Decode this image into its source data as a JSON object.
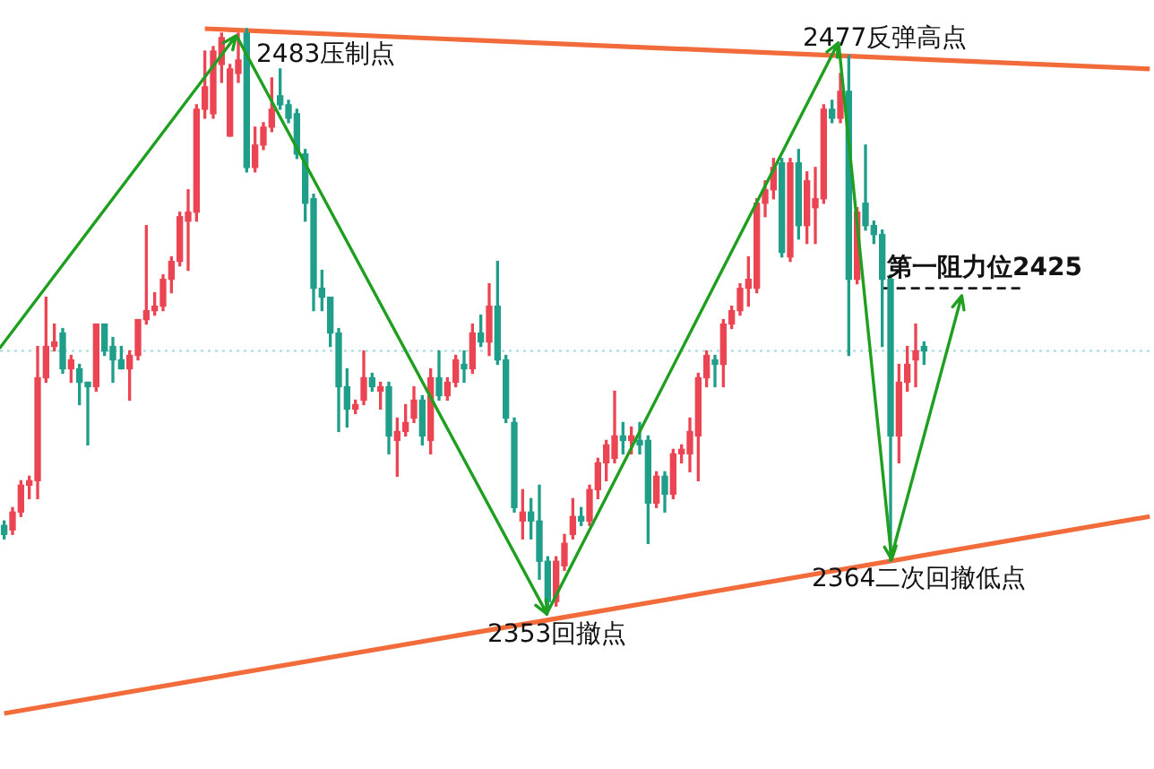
{
  "chart_data": {
    "type": "candlestick",
    "categories": [
      null,
      null,
      null,
      null,
      null,
      null,
      null,
      null,
      null,
      null,
      null,
      null,
      null,
      null,
      null,
      null,
      null,
      null,
      null,
      null,
      null,
      null,
      null,
      null,
      null,
      null,
      null,
      null,
      null,
      null,
      null,
      null,
      null,
      null,
      null,
      null,
      null,
      null,
      null,
      null,
      null,
      null,
      null,
      null,
      null,
      null,
      null,
      null,
      null,
      null,
      null,
      null,
      null,
      null,
      null,
      null,
      null,
      null,
      null,
      null,
      null,
      null,
      null,
      null,
      null,
      null,
      null,
      null,
      null,
      null,
      null,
      null,
      null,
      null,
      null,
      null,
      null,
      null,
      null,
      null,
      null,
      null,
      null,
      null,
      null,
      null,
      null,
      null,
      null,
      null,
      null,
      null,
      null,
      null,
      null,
      null,
      null,
      null,
      null,
      null,
      null,
      null,
      null,
      null,
      null,
      null,
      null,
      null,
      null,
      null,
      null,
      null,
      null,
      null,
      null,
      null,
      null,
      null,
      null,
      null,
      null,
      null,
      null,
      null,
      null,
      null,
      null,
      null,
      null,
      null,
      null,
      null,
      null,
      null,
      null,
      null,
      null,
      null
    ],
    "ohlc": [
      [
        2372,
        2373,
        2369,
        2370
      ],
      [
        2371,
        2376,
        2370,
        2375
      ],
      [
        2375,
        2382,
        2374,
        2381
      ],
      [
        2381,
        2383,
        2378,
        2382
      ],
      [
        2382,
        2412,
        2378,
        2405
      ],
      [
        2405,
        2423,
        2404,
        2412
      ],
      [
        2412,
        2417,
        2411,
        2413
      ],
      [
        2415,
        2416,
        2406,
        2407
      ],
      [
        2407,
        2410,
        2404,
        2409
      ],
      [
        2407,
        2408,
        2399,
        2404
      ],
      [
        2404,
        2404,
        2390,
        2403
      ],
      [
        2403,
        2417,
        2402,
        2417
      ],
      [
        2417,
        2417,
        2410,
        2411
      ],
      [
        2412,
        2414,
        2404,
        2409
      ],
      [
        2409,
        2412,
        2407,
        2407
      ],
      [
        2407,
        2411,
        2400,
        2410
      ],
      [
        2410,
        2418,
        2409,
        2418
      ],
      [
        2418,
        2439,
        2417,
        2420
      ],
      [
        2420,
        2424,
        2419,
        2421
      ],
      [
        2421,
        2428,
        2420,
        2427
      ],
      [
        2427,
        2432,
        2424,
        2431
      ],
      [
        2431,
        2442,
        2430,
        2441
      ],
      [
        2440,
        2447,
        2429,
        2442
      ],
      [
        2442,
        2466,
        2440,
        2465
      ],
      [
        2465,
        2478,
        2463,
        2470
      ],
      [
        2464,
        2479,
        2463,
        2478
      ],
      [
        2475,
        2482,
        2471,
        2481
      ],
      [
        2459,
        2475,
        2459,
        2474
      ],
      [
        2473,
        2482,
        2471,
        2476
      ],
      [
        2482,
        2483,
        2451,
        2452
      ],
      [
        2452,
        2461,
        2451,
        2457
      ],
      [
        2457,
        2462,
        2456,
        2461
      ],
      [
        2461,
        2472,
        2460,
        2465
      ],
      [
        2468,
        2474,
        2465,
        2466
      ],
      [
        2466,
        2467,
        2462,
        2463
      ],
      [
        2464,
        2465,
        2454,
        2455
      ],
      [
        2455,
        2456,
        2440,
        2444
      ],
      [
        2445,
        2446,
        2420,
        2425
      ],
      [
        2425,
        2429,
        2420,
        2423
      ],
      [
        2423,
        2423,
        2412,
        2415
      ],
      [
        2415,
        2416,
        2393,
        2403
      ],
      [
        2403,
        2407,
        2394,
        2398
      ],
      [
        2398,
        2400,
        2397,
        2399
      ],
      [
        2400,
        2411,
        2399,
        2405
      ],
      [
        2405,
        2406,
        2402,
        2403
      ],
      [
        2402,
        2404,
        2398,
        2403
      ],
      [
        2403,
        2404,
        2388,
        2392
      ],
      [
        2391,
        2396,
        2383,
        2393
      ],
      [
        2393,
        2399,
        2392,
        2395
      ],
      [
        2396,
        2403,
        2395,
        2400
      ],
      [
        2400,
        2401,
        2390,
        2392
      ],
      [
        2391,
        2407,
        2388,
        2405
      ],
      [
        2405,
        2411,
        2400,
        2401
      ],
      [
        2401,
        2405,
        2400,
        2404
      ],
      [
        2404,
        2410,
        2403,
        2409
      ],
      [
        2408,
        2411,
        2404,
        2407
      ],
      [
        2407,
        2417,
        2406,
        2415
      ],
      [
        2415,
        2419,
        2412,
        2413
      ],
      [
        2413,
        2426,
        2410,
        2421
      ],
      [
        2421,
        2431,
        2408,
        2409
      ],
      [
        2409,
        2410,
        2395,
        2396
      ],
      [
        2395,
        2396,
        2375,
        2376
      ],
      [
        2373,
        2380,
        2369,
        2375
      ],
      [
        2375,
        2378,
        2369,
        2373
      ],
      [
        2373,
        2381,
        2360,
        2364
      ],
      [
        2364,
        2365,
        2353,
        2355
      ],
      [
        2355,
        2365,
        2354,
        2364
      ],
      [
        2363,
        2370,
        2362,
        2368
      ],
      [
        2370,
        2378,
        2369,
        2374
      ],
      [
        2374,
        2376,
        2372,
        2373
      ],
      [
        2373,
        2381,
        2372,
        2380
      ],
      [
        2380,
        2387,
        2378,
        2386
      ],
      [
        2386,
        2391,
        2382,
        2390
      ],
      [
        2387,
        2402,
        2386,
        2392
      ],
      [
        2392,
        2395,
        2388,
        2391
      ],
      [
        2391,
        2394,
        2388,
        2392
      ],
      [
        2391,
        2395,
        2388,
        2390
      ],
      [
        2391,
        2392,
        2368,
        2377
      ],
      [
        2377,
        2384,
        2376,
        2383
      ],
      [
        2383,
        2384,
        2375,
        2379
      ],
      [
        2379,
        2389,
        2378,
        2388
      ],
      [
        2388,
        2390,
        2386,
        2389
      ],
      [
        2388,
        2396,
        2384,
        2393
      ],
      [
        2392,
        2406,
        2382,
        2405
      ],
      [
        2405,
        2411,
        2403,
        2410
      ],
      [
        2409,
        2410,
        2403,
        2408
      ],
      [
        2408,
        2418,
        2403,
        2417
      ],
      [
        2417,
        2421,
        2416,
        2420
      ],
      [
        2420,
        2426,
        2419,
        2425
      ],
      [
        2425,
        2432,
        2421,
        2427
      ],
      [
        2425,
        2445,
        2424,
        2444
      ],
      [
        2444,
        2449,
        2441,
        2447
      ],
      [
        2447,
        2454,
        2445,
        2452
      ],
      [
        2453,
        2454,
        2432,
        2433
      ],
      [
        2432,
        2454,
        2431,
        2453
      ],
      [
        2453,
        2456,
        2436,
        2439
      ],
      [
        2439,
        2451,
        2435,
        2449
      ],
      [
        2443,
        2452,
        2435,
        2445
      ],
      [
        2445,
        2466,
        2444,
        2465
      ],
      [
        2465,
        2467,
        2462,
        2463
      ],
      [
        2463,
        2473,
        2462,
        2469
      ],
      [
        2469,
        2477,
        2410,
        2427
      ],
      [
        2427,
        2443,
        2426,
        2442
      ],
      [
        2444,
        2457,
        2438,
        2439
      ],
      [
        2439,
        2440,
        2435,
        2437
      ],
      [
        2437,
        2438,
        2412,
        2427
      ],
      [
        2427,
        2428,
        2364,
        2392
      ],
      [
        2392,
        2408,
        2386,
        2404
      ],
      [
        2404,
        2412,
        2402,
        2408
      ],
      [
        2409,
        2417,
        2403,
        2411
      ],
      [
        2412,
        2413,
        2408,
        2411
      ],
      null,
      null,
      null,
      null,
      null,
      null,
      null,
      null,
      null,
      null,
      null,
      null,
      null,
      null,
      null,
      null,
      null,
      null,
      null,
      null,
      null,
      null,
      null,
      null,
      null,
      null,
      null
    ],
    "colors": [
      "#1f9e89",
      "#eb4553",
      "#eb4553",
      "#eb4553",
      "#eb4553",
      "#eb4553",
      "#eb4553",
      "#1f9e89",
      "#eb4553",
      "#1f9e89",
      "#1f9e89",
      "#eb4553",
      "#1f9e89",
      "#1f9e89",
      "#1f9e89",
      "#eb4553",
      "#eb4553",
      "#eb4553",
      "#eb4553",
      "#eb4553",
      "#eb4553",
      "#eb4553",
      "#eb4553",
      "#eb4553",
      "#eb4553",
      "#eb4553",
      "#eb4553",
      "#eb4553",
      "#eb4553",
      "#1f9e89",
      "#eb4553",
      "#eb4553",
      "#eb4553",
      "#1f9e89",
      "#1f9e89",
      "#1f9e89",
      "#1f9e89",
      "#1f9e89",
      "#1f9e89",
      "#1f9e89",
      "#1f9e89",
      "#1f9e89",
      "#eb4553",
      "#eb4553",
      "#1f9e89",
      "#eb4553",
      "#1f9e89",
      "#eb4553",
      "#eb4553",
      "#eb4553",
      "#1f9e89",
      "#eb4553",
      "#1f9e89",
      "#eb4553",
      "#eb4553",
      "#1f9e89",
      "#eb4553",
      "#1f9e89",
      "#eb4553",
      "#1f9e89",
      "#1f9e89",
      "#1f9e89",
      "#eb4553",
      "#1f9e89",
      "#1f9e89",
      "#1f9e89",
      "#eb4553",
      "#eb4553",
      "#eb4553",
      "#1f9e89",
      "#eb4553",
      "#eb4553",
      "#eb4553",
      "#eb4553",
      "#1f9e89",
      "#eb4553",
      "#1f9e89",
      "#1f9e89",
      "#eb4553",
      "#1f9e89",
      "#eb4553",
      "#eb4553",
      "#eb4553",
      "#eb4553",
      "#eb4553",
      "#1f9e89",
      "#eb4553",
      "#eb4553",
      "#eb4553",
      "#eb4553",
      "#eb4553",
      "#eb4553",
      "#eb4553",
      "#1f9e89",
      "#eb4553",
      "#1f9e89",
      "#eb4553",
      "#eb4553",
      "#eb4553",
      "#1f9e89",
      "#eb4553",
      "#1f9e89",
      "#eb4553",
      "#1f9e89",
      "#1f9e89",
      "#1f9e89",
      "#1f9e89",
      "#eb4553",
      "#eb4553",
      "#eb4553",
      "#1f9e89",
      null,
      null,
      null,
      null,
      null,
      null,
      null,
      null,
      null,
      null,
      null,
      null,
      null,
      null,
      null,
      null,
      null,
      null,
      null,
      null,
      null,
      null,
      null,
      null,
      null,
      null,
      null
    ],
    "series": [
      {
        "type": "line",
        "color": "#f26b3a",
        "values": [
          null,
          null,
          null,
          null,
          null,
          null,
          null,
          null,
          null,
          null,
          null,
          null,
          null,
          null,
          null,
          null,
          null,
          null,
          null,
          null,
          null,
          null,
          null,
          null,
          2483,
          null,
          null,
          null,
          null,
          null,
          null,
          null,
          null,
          null,
          null,
          null,
          null,
          null,
          null,
          null,
          null,
          null,
          null,
          null,
          null,
          null,
          null,
          null,
          null,
          null,
          null,
          null,
          null,
          null,
          null,
          null,
          null,
          null,
          null,
          null,
          null,
          null,
          null,
          null,
          null,
          null,
          null,
          null,
          null,
          null,
          null,
          null,
          null,
          null,
          null,
          null,
          null,
          null,
          null,
          null,
          null,
          null,
          null,
          null,
          null,
          null,
          null,
          null,
          null,
          null,
          null,
          null,
          null,
          null,
          null,
          null,
          null,
          null,
          null,
          null,
          null,
          null,
          null,
          null,
          null,
          null,
          null,
          null,
          null,
          null,
          null,
          null,
          null,
          null,
          null,
          null,
          null,
          null,
          null,
          null,
          null,
          null,
          null,
          null,
          null,
          null,
          null,
          null,
          null,
          null,
          null,
          null,
          null,
          null,
          null,
          null,
          null,
          2474
        ]
      },
      {
        "type": "line",
        "color": "#f26b3a",
        "values": [
          2330,
          null,
          null,
          null,
          null,
          null,
          null,
          null,
          null,
          null,
          null,
          null,
          null,
          null,
          null,
          null,
          null,
          null,
          null,
          null,
          null,
          null,
          null,
          null,
          null,
          null,
          null,
          null,
          null,
          null,
          null,
          null,
          null,
          null,
          null,
          null,
          null,
          null,
          null,
          null,
          null,
          null,
          null,
          null,
          null,
          null,
          null,
          null,
          null,
          null,
          null,
          null,
          null,
          null,
          null,
          null,
          null,
          null,
          null,
          null,
          null,
          null,
          null,
          null,
          null,
          null,
          null,
          null,
          null,
          null,
          null,
          null,
          null,
          null,
          null,
          null,
          null,
          null,
          null,
          null,
          null,
          null,
          null,
          null,
          null,
          null,
          null,
          null,
          null,
          null,
          null,
          null,
          null,
          null,
          null,
          null,
          null,
          null,
          null,
          null,
          null,
          null,
          null,
          null,
          null,
          null,
          null,
          null,
          null,
          null,
          null,
          null,
          null,
          null,
          null,
          null,
          null,
          null,
          null,
          null,
          null,
          null,
          null,
          null,
          null,
          null,
          null,
          null,
          null,
          null,
          null,
          null,
          null,
          null,
          null,
          null,
          null,
          2374
        ]
      },
      {
        "type": "line",
        "color": "#1a1a1a",
        "line_style": "dashed",
        "values": [
          null,
          null,
          null,
          null,
          null,
          null,
          null,
          null,
          null,
          null,
          null,
          null,
          null,
          null,
          null,
          null,
          null,
          null,
          null,
          null,
          null,
          null,
          null,
          null,
          null,
          null,
          null,
          null,
          null,
          null,
          null,
          null,
          null,
          null,
          null,
          null,
          null,
          null,
          null,
          null,
          null,
          null,
          null,
          null,
          null,
          null,
          null,
          null,
          null,
          null,
          null,
          null,
          null,
          null,
          null,
          null,
          null,
          null,
          null,
          null,
          null,
          null,
          null,
          null,
          null,
          null,
          null,
          null,
          null,
          null,
          null,
          null,
          null,
          null,
          null,
          null,
          null,
          null,
          null,
          null,
          null,
          null,
          null,
          null,
          null,
          null,
          null,
          null,
          null,
          null,
          null,
          null,
          null,
          null,
          null,
          null,
          null,
          null,
          null,
          null,
          null,
          null,
          null,
          null,
          null,
          2425,
          2425,
          2425,
          2425,
          2425,
          2425,
          2425,
          2425,
          2425,
          2425,
          2425,
          2425,
          2425,
          2425,
          2425,
          2425,
          2425,
          2425,
          null,
          null,
          null,
          null,
          null,
          null,
          null,
          null,
          null,
          null,
          null,
          null,
          null,
          null,
          null
        ]
      }
    ],
    "ref_lines": [
      {
        "axis": "y",
        "value": 2411,
        "color": "#9fd8df",
        "line_style": "dotted"
      }
    ],
    "annotations": [
      {
        "text": "2483压制点",
        "y": 2483
      },
      {
        "text": "2477反弹高点",
        "y": 2477
      },
      {
        "text": "第一阻力位2425",
        "y": 2425
      },
      {
        "text": "2364二次回撤低点",
        "y": 2364
      },
      {
        "text": "2353回撤点",
        "y": 2353
      }
    ],
    "tick_labels": false
  }
}
